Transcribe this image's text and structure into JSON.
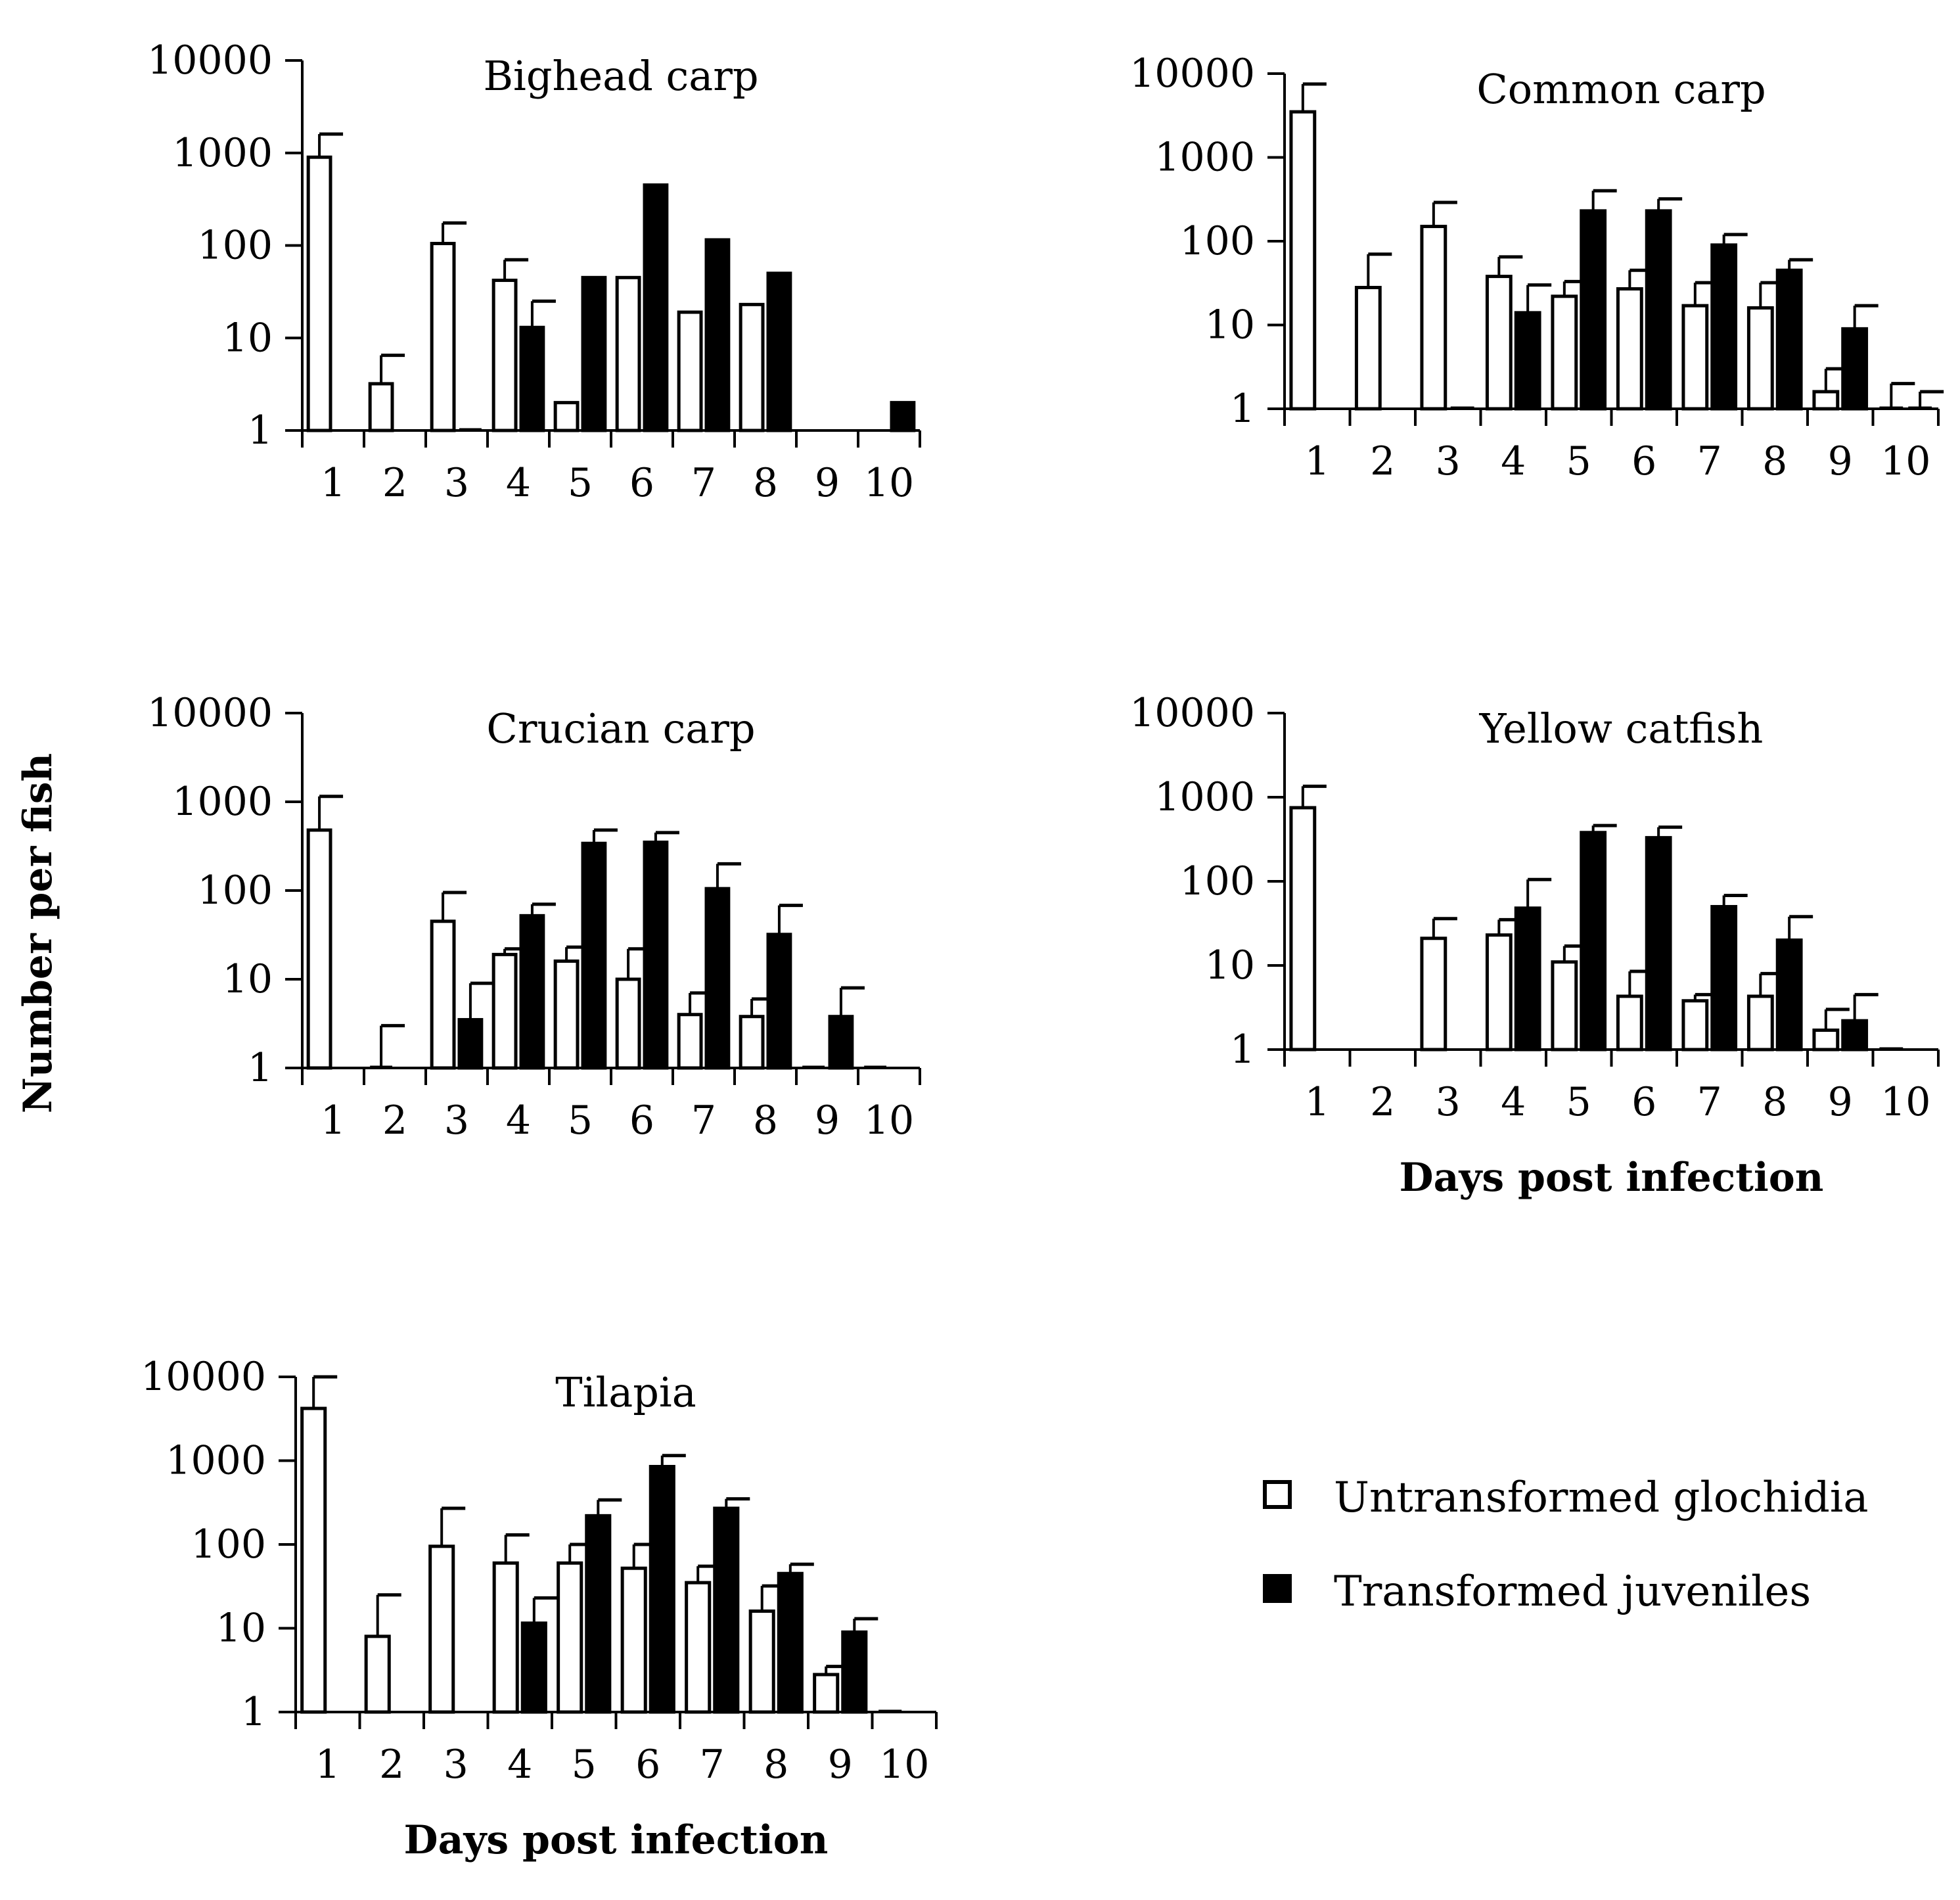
{
  "figure": {
    "ylabel": "Number per fish",
    "xlabel": "Days post infection",
    "legend": [
      {
        "name": "Untransformed glochidia",
        "fill": "#ffffff"
      },
      {
        "name": "Transformed juveniles",
        "fill": "#000000"
      }
    ]
  },
  "chart_data": [
    {
      "type": "bar",
      "title": "Bighead carp",
      "xlabel": "",
      "ylabel": "Number per fish",
      "yscale": "log",
      "ylim": [
        1,
        10000
      ],
      "yticks": [
        "1",
        "10",
        "100",
        "1000",
        "10000"
      ],
      "categories": [
        "1",
        "2",
        "3",
        "4",
        "5",
        "6",
        "7",
        "8",
        "9",
        "10"
      ],
      "series": [
        {
          "name": "Untransformed glochidia",
          "values": [
            900,
            3.2,
            105,
            42,
            2,
            45,
            19,
            23,
            null,
            null
          ],
          "errors": [
            1600,
            6.5,
            175,
            70,
            null,
            null,
            null,
            null,
            null,
            null
          ]
        },
        {
          "name": "Transformed juveniles",
          "values": [
            null,
            null,
            1,
            13,
            45,
            450,
            115,
            50,
            null,
            2
          ],
          "errors": [
            null,
            null,
            null,
            25,
            null,
            null,
            null,
            null,
            null,
            null
          ]
        }
      ]
    },
    {
      "type": "bar",
      "title": "Common carp",
      "xlabel": "",
      "ylabel": "Number per fish",
      "yscale": "log",
      "ylim": [
        1,
        10000
      ],
      "yticks": [
        "1",
        "10",
        "100",
        "1000",
        "10000"
      ],
      "categories": [
        "1",
        "2",
        "3",
        "4",
        "5",
        "6",
        "7",
        "8",
        "9",
        "10"
      ],
      "series": [
        {
          "name": "Untransformed glochidia",
          "values": [
            3500,
            28,
            150,
            38,
            22,
            27,
            17,
            16,
            1.6,
            1
          ],
          "errors": [
            7500,
            70,
            290,
            65,
            33,
            45,
            32,
            32,
            3,
            2
          ]
        },
        {
          "name": "Transformed juveniles",
          "values": [
            null,
            null,
            1,
            14,
            230,
            230,
            90,
            45,
            9,
            1
          ],
          "errors": [
            null,
            null,
            null,
            30,
            400,
            320,
            120,
            60,
            17,
            1.6
          ]
        }
      ]
    },
    {
      "type": "bar",
      "title": "Crucian carp",
      "xlabel": "",
      "ylabel": "Number per fish",
      "yscale": "log",
      "ylim": [
        1,
        10000
      ],
      "yticks": [
        "1",
        "10",
        "100",
        "1000",
        "10000"
      ],
      "categories": [
        "1",
        "2",
        "3",
        "4",
        "5",
        "6",
        "7",
        "8",
        "9",
        "10"
      ],
      "series": [
        {
          "name": "Untransformed glochidia",
          "values": [
            480,
            1,
            45,
            19,
            16,
            10,
            4,
            3.8,
            1,
            1
          ],
          "errors": [
            1150,
            3,
            95,
            22,
            23,
            22,
            7,
            6,
            null,
            null
          ]
        },
        {
          "name": "Transformed juveniles",
          "values": [
            null,
            null,
            3.5,
            52,
            340,
            350,
            105,
            32,
            3.8,
            null
          ],
          "errors": [
            null,
            null,
            9,
            70,
            480,
            450,
            200,
            68,
            8,
            null
          ]
        }
      ]
    },
    {
      "type": "bar",
      "title": "Yellow catfish",
      "xlabel": "Days post infection",
      "ylabel": "Number per fish",
      "yscale": "log",
      "ylim": [
        1,
        10000
      ],
      "yticks": [
        "1",
        "10",
        "100",
        "1000",
        "10000"
      ],
      "categories": [
        "1",
        "2",
        "3",
        "4",
        "5",
        "6",
        "7",
        "8",
        "9",
        "10"
      ],
      "series": [
        {
          "name": "Untransformed glochidia",
          "values": [
            750,
            null,
            21,
            23,
            11,
            4.3,
            3.8,
            4.3,
            1.7,
            1
          ],
          "errors": [
            1350,
            null,
            36,
            35,
            17,
            8.5,
            4.5,
            8,
            3,
            null
          ]
        },
        {
          "name": "Transformed juveniles",
          "values": [
            null,
            null,
            null,
            48,
            380,
            330,
            50,
            20,
            2.2,
            null
          ],
          "errors": [
            null,
            null,
            null,
            105,
            460,
            440,
            68,
            38,
            4.5,
            null
          ]
        }
      ]
    },
    {
      "type": "bar",
      "title": "Tilapia",
      "xlabel": "Days post infection",
      "ylabel": "Number per fish",
      "yscale": "log",
      "ylim": [
        1,
        10000
      ],
      "yticks": [
        "1",
        "10",
        "100",
        "1000",
        "10000"
      ],
      "categories": [
        "1",
        "2",
        "3",
        "4",
        "5",
        "6",
        "7",
        "8",
        "9",
        "10"
      ],
      "series": [
        {
          "name": "Untransformed glochidia",
          "values": [
            4200,
            8,
            95,
            60,
            60,
            52,
            35,
            16,
            2.8,
            1
          ],
          "errors": [
            10000,
            25,
            270,
            130,
            100,
            100,
            55,
            32,
            3.5,
            null
          ]
        },
        {
          "name": "Transformed juveniles",
          "values": [
            null,
            null,
            null,
            11.5,
            220,
            850,
            270,
            45,
            9,
            null
          ],
          "errors": [
            null,
            null,
            null,
            23,
            340,
            1150,
            350,
            58,
            13,
            null
          ]
        }
      ]
    }
  ]
}
